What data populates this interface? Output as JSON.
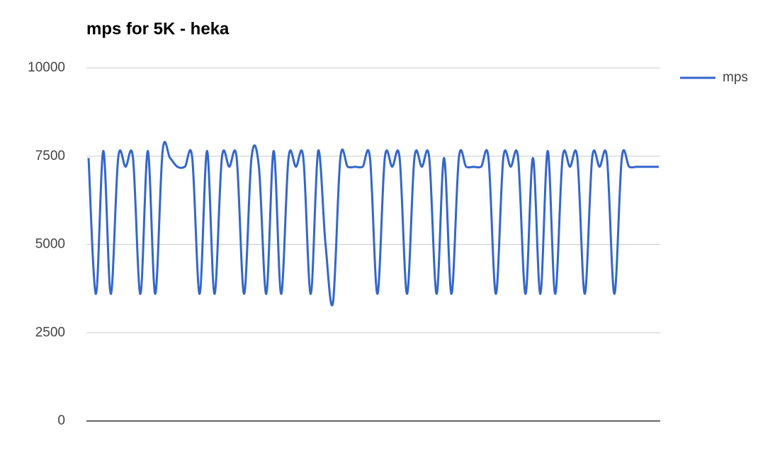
{
  "chart_data": {
    "type": "line",
    "title": "mps for 5K - heka",
    "series": [
      {
        "name": "mps",
        "color": "#3366cc",
        "values": [
          7450,
          3600,
          7650,
          3600,
          7450,
          7200,
          7450,
          3600,
          7650,
          3600,
          7650,
          7450,
          7200,
          7200,
          7450,
          3600,
          7650,
          3600,
          7450,
          7200,
          7450,
          3600,
          7450,
          7200,
          3600,
          7650,
          3600,
          7450,
          7200,
          7450,
          3600,
          7650,
          5000,
          3350,
          7450,
          7200,
          7200,
          7200,
          7450,
          3600,
          7450,
          7200,
          7450,
          3600,
          7450,
          7200,
          7450,
          3600,
          7450,
          3600,
          7450,
          7200,
          7200,
          7200,
          7450,
          3600,
          7450,
          7200,
          7450,
          3600,
          7450,
          3600,
          7650,
          3600,
          7450,
          7200,
          7450,
          3600,
          7450,
          7200,
          7450,
          3600,
          7450,
          7200,
          7200,
          7200,
          7200,
          7200
        ]
      }
    ],
    "ylim": [
      0,
      10000
    ],
    "yticks": [
      0,
      2500,
      5000,
      7500,
      10000
    ],
    "grid": true,
    "legend": "right",
    "smooth": true
  }
}
